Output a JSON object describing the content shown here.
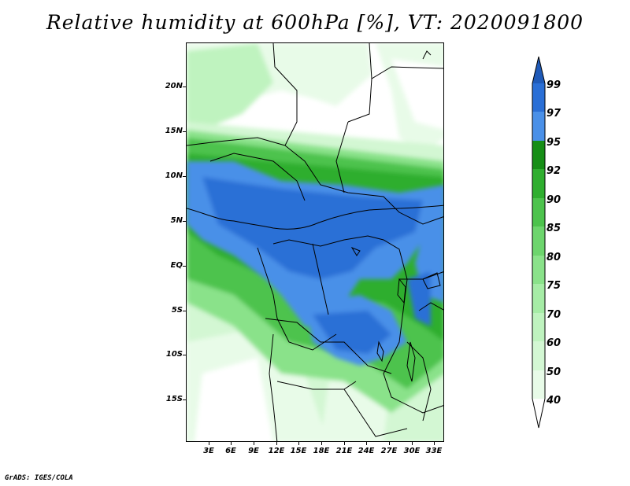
{
  "title": "Relative humidity at 600hPa [%], VT: 2020091800",
  "credit": "GrADS: IGES/COLA",
  "map": {
    "lat_labels": [
      "20N",
      "15N",
      "10N",
      "5N",
      "EQ",
      "5S",
      "10S",
      "15S"
    ],
    "lon_labels": [
      "3E",
      "6E",
      "9E",
      "12E",
      "15E",
      "18E",
      "21E",
      "24E",
      "27E",
      "30E",
      "33E"
    ]
  },
  "colorbar": {
    "labels": [
      "99",
      "97",
      "95",
      "92",
      "90",
      "85",
      "80",
      "75",
      "70",
      "60",
      "50",
      "40"
    ],
    "colors": {
      "lt40": "#ffffff",
      "40_50": "#e8fbe8",
      "50_60": "#d3f7d3",
      "60_70": "#bff3bf",
      "70_75": "#a6eca6",
      "75_80": "#8ae28a",
      "80_85": "#6dd56d",
      "85_90": "#4dc34d",
      "90_92": "#2fae2f",
      "92_95": "#168e16",
      "95_97": "#4a90e8",
      "97_99": "#2a6fd6",
      "gt99": "#1f5ab8"
    }
  }
}
